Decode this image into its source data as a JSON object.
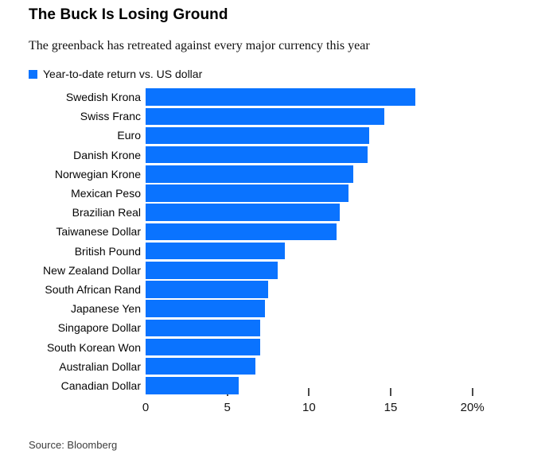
{
  "header": {
    "title": "The Buck Is Losing Ground",
    "subtitle": "The greenback has retreated against every major currency this year"
  },
  "legend": {
    "label": "Year-to-date return vs. US dollar",
    "swatch_color": "#0a73ff"
  },
  "chart_data": {
    "type": "bar",
    "orientation": "horizontal",
    "title": "The Buck Is Losing Ground",
    "subtitle": "The greenback has retreated against every major currency this year",
    "legend_entries": [
      "Year-to-date return vs. US dollar"
    ],
    "legend_position": "top-left",
    "categories": [
      "Swedish Krona",
      "Swiss Franc",
      "Euro",
      "Danish Krone",
      "Norwegian Krone",
      "Mexican Peso",
      "Brazilian Real",
      "Taiwanese Dollar",
      "British Pound",
      "New Zealand Dollar",
      "South African Rand",
      "Japanese Yen",
      "Singapore Dollar",
      "South Korean Won",
      "Australian Dollar",
      "Canadian Dollar"
    ],
    "values": [
      16.5,
      14.6,
      13.7,
      13.6,
      12.7,
      12.4,
      11.9,
      11.7,
      8.5,
      8.1,
      7.5,
      7.3,
      7.0,
      7.0,
      6.7,
      5.7
    ],
    "unit": "%",
    "xlabel": "",
    "ylabel": "",
    "xlim": [
      0,
      20
    ],
    "x_ticks": [
      0,
      5,
      10,
      15,
      20
    ],
    "x_tick_labels": [
      "0",
      "5",
      "10",
      "15",
      "20%"
    ],
    "grid": false,
    "bar_color": "#0a73ff"
  },
  "footer": {
    "source": "Source: Bloomberg"
  }
}
